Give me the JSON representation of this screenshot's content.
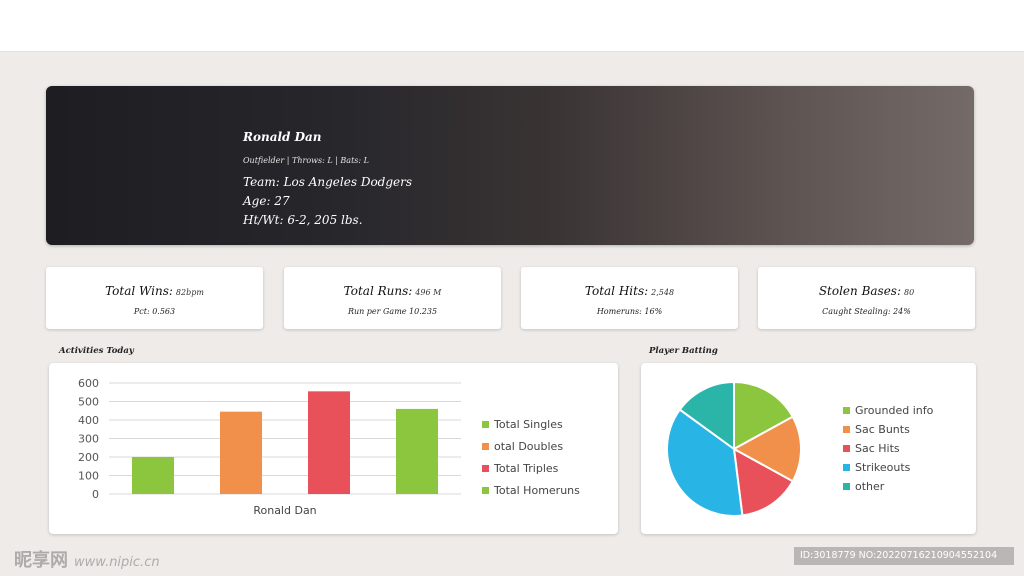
{
  "profile": {
    "name": "Ronald Dan",
    "meta": "Outfielder | Throws: L | Bats: L",
    "team": "Team: Los Angeles Dodgers",
    "age": "Age: 27",
    "ht_wt": "Ht/Wt: 6-2, 205 lbs."
  },
  "stats": [
    {
      "label": "Total Wins:",
      "value": "82bpm",
      "sub": "Pct: 0.563"
    },
    {
      "label": "Total Runs:",
      "value": "496 M",
      "sub": "Run per Game 10.235"
    },
    {
      "label": "Total Hits:",
      "value": "2,548",
      "sub": "Homeruns: 16%"
    },
    {
      "label": "Stolen Bases:",
      "value": "80",
      "sub": "Caught Stealing: 24%"
    }
  ],
  "sections": {
    "activities_title": "Activities Today",
    "batting_title": "Player Batting"
  },
  "chart_data": [
    {
      "type": "bar",
      "title": "",
      "categories": [
        "Ronald Dan"
      ],
      "xlabel": "",
      "ylabel": "",
      "ylim": [
        0,
        600
      ],
      "yticks": [
        "600",
        "500",
        "400",
        "300",
        "200",
        "100",
        "0"
      ],
      "grid": true,
      "legend_position": "right",
      "series": [
        {
          "name": "Total Singles",
          "values": [
            200
          ],
          "color": "#8cc63f"
        },
        {
          "name": "otal Doubles",
          "values": [
            445
          ],
          "color": "#f0904a"
        },
        {
          "name": "Total Triples",
          "values": [
            555
          ],
          "color": "#e8505a"
        },
        {
          "name": "Total Homeruns",
          "values": [
            460
          ],
          "color": "#8cc63f"
        }
      ]
    },
    {
      "type": "pie",
      "title": "",
      "legend_position": "right",
      "slices": [
        {
          "name": "Grounded info",
          "value": 17,
          "color": "#8cc63f"
        },
        {
          "name": "Sac Bunts",
          "value": 16,
          "color": "#f0904a"
        },
        {
          "name": "Sac Hits",
          "value": 15,
          "color": "#e8505a"
        },
        {
          "name": "Strikeouts",
          "value": 37,
          "color": "#29b4e6"
        },
        {
          "name": "other",
          "value": 15,
          "color": "#2bb5a8"
        }
      ]
    }
  ],
  "watermark": {
    "logo": "昵享网",
    "url": "www.nipic.cn",
    "id_text": "ID:3018779 NO:20220716210904552104"
  }
}
